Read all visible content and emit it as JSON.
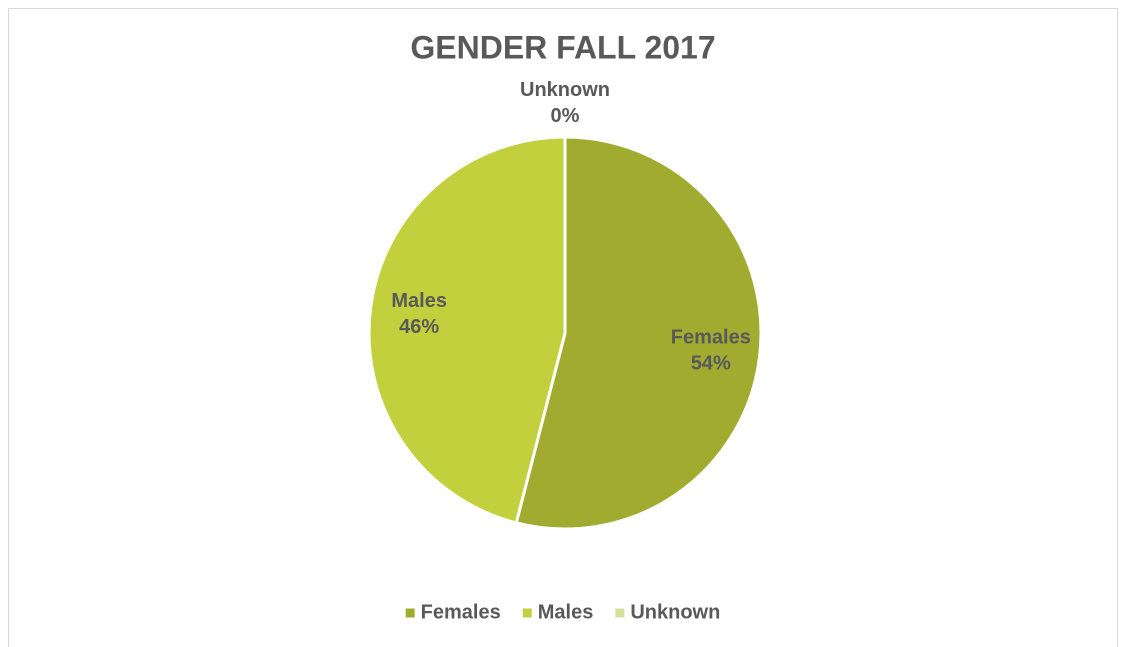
{
  "chart_data": {
    "type": "pie",
    "title": "GENDER FALL 2017",
    "categories": [
      "Females",
      "Males",
      "Unknown"
    ],
    "values": [
      54,
      46,
      0
    ],
    "value_labels": [
      "54%",
      "46%",
      "0%"
    ],
    "colors": [
      "#a0ab30",
      "#c1d03c",
      "#d6e09a"
    ],
    "legend": "bottom"
  }
}
